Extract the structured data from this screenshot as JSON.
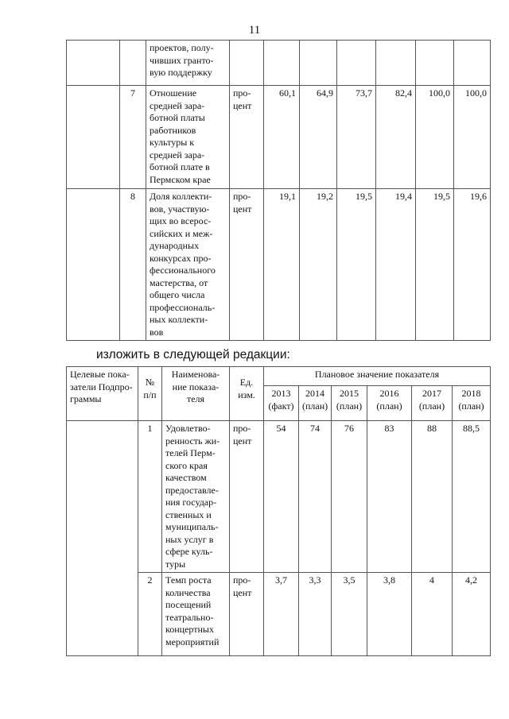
{
  "page_number": "11",
  "prev_table": {
    "rows": [
      {
        "col0": "",
        "num": "",
        "name": "проектов, полу-\nчивших гранто-\nвую поддержку",
        "unit": "",
        "values": [
          "",
          "",
          "",
          "",
          "",
          ""
        ]
      },
      {
        "col0": "",
        "num": "7",
        "name": "Отношение\nсредней зара-\nботной платы\nработников\nкультуры к\nсредней зара-\nботной плате в\nПермском крае",
        "unit": "про-\nцент",
        "values": [
          "60,1",
          "64,9",
          "73,7",
          "82,4",
          "100,0",
          "100,0"
        ]
      },
      {
        "col0": "",
        "num": "8",
        "name": "Доля коллекти-\nвов, участвую-\nщих во всерос-\nсийских и меж-\nдународных\nконкурсах про-\nфессионального\nмастерства, от\nобщего числа\nпрофессиональ-\nных коллекти-\nвов",
        "unit": "про-\nцент",
        "values": [
          "19,1",
          "19,2",
          "19,5",
          "19,4",
          "19,5",
          "19,6"
        ]
      }
    ]
  },
  "intro_text": "изложить в следующей редакции:",
  "new_table": {
    "headers": {
      "goals": "Целевые пока-\nзатели Подпро-\nграммы",
      "num": "№\nп/п",
      "name": "Наименова-\nние показа-\nтеля",
      "unit": "Ед.\nизм.",
      "planned": "Плановое значение показателя",
      "years": [
        "2013\n(факт)",
        "2014\n(план)",
        "2015\n(план)",
        "2016\n(план)",
        "2017\n(план)",
        "2018\n(план)"
      ]
    },
    "rows": [
      {
        "num": "1",
        "name": "Удовлетво-\nренность жи-\nтелей Перм-\nского края\nкачеством\nпредоставле-\nния государ-\nственных и\nмуниципаль-\nных услуг в\nсфере куль-\nтуры",
        "unit": "про-\nцент",
        "values": [
          "54",
          "74",
          "76",
          "83",
          "88",
          "88,5"
        ]
      },
      {
        "num": "2",
        "name": "Темп роста\nколичества\nпосещений\nтеатрально-\nконцертных\nмероприятий",
        "unit": "про-\nцент",
        "values": [
          "3,7",
          "3,3",
          "3,5",
          "3,8",
          "4",
          "4,2"
        ]
      }
    ]
  }
}
